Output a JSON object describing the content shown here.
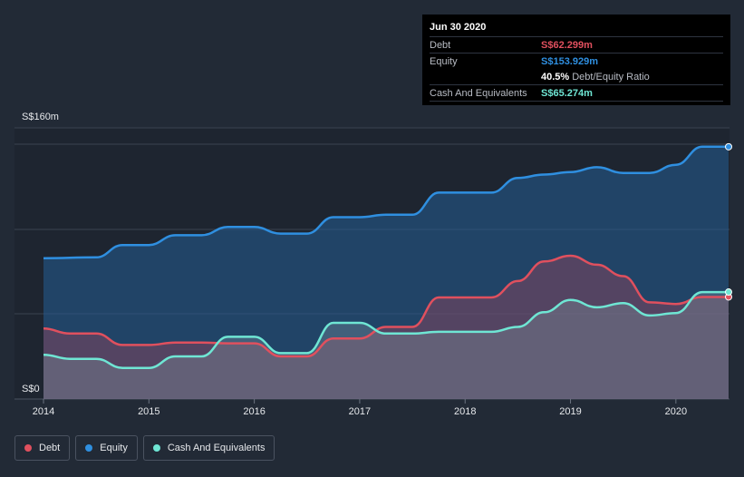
{
  "tooltip": {
    "date": "Jun 30 2020",
    "debt_label": "Debt",
    "debt_value": "S$62.299m",
    "equity_label": "Equity",
    "equity_value": "S$153.929m",
    "ratio_value": "40.5%",
    "ratio_label": "Debt/Equity Ratio",
    "cash_label": "Cash And Equivalents",
    "cash_value": "S$65.274m"
  },
  "legend": {
    "debt": "Debt",
    "equity": "Equity",
    "cash": "Cash And Equivalents"
  },
  "colors": {
    "debt": "#e0505e",
    "equity": "#2f8fe0",
    "cash": "#6fe6d4",
    "background": "#222a36"
  },
  "chart_data": {
    "type": "area",
    "title": "",
    "xlabel": "",
    "ylabel": "",
    "y_tick_labels": [
      "S$160m",
      "S$0"
    ],
    "ylim": [
      0,
      160
    ],
    "xlim": [
      2014,
      2020.5
    ],
    "x_ticks": [
      2014,
      2015,
      2016,
      2017,
      2018,
      2019,
      2020
    ],
    "grid": true,
    "legend_position": "bottom-left",
    "series": [
      {
        "name": "Equity",
        "points": [
          [
            2014.0,
            86
          ],
          [
            2014.5,
            86.5
          ],
          [
            2014.75,
            94
          ],
          [
            2015.0,
            94
          ],
          [
            2015.25,
            100
          ],
          [
            2015.5,
            100
          ],
          [
            2015.75,
            105
          ],
          [
            2016.0,
            105
          ],
          [
            2016.25,
            101
          ],
          [
            2016.5,
            101
          ],
          [
            2016.75,
            111
          ],
          [
            2017.0,
            111
          ],
          [
            2017.25,
            112.5
          ],
          [
            2017.5,
            112.5
          ],
          [
            2017.75,
            126
          ],
          [
            2018.0,
            126
          ],
          [
            2018.25,
            126
          ],
          [
            2018.5,
            135
          ],
          [
            2018.75,
            137
          ],
          [
            2019.0,
            138.5
          ],
          [
            2019.25,
            141.5
          ],
          [
            2019.5,
            138
          ],
          [
            2019.75,
            138
          ],
          [
            2020.0,
            143
          ],
          [
            2020.25,
            154
          ],
          [
            2020.5,
            154
          ]
        ]
      },
      {
        "name": "Debt",
        "points": [
          [
            2014.0,
            43
          ],
          [
            2014.25,
            40
          ],
          [
            2014.5,
            40
          ],
          [
            2014.75,
            33
          ],
          [
            2015.0,
            33
          ],
          [
            2015.25,
            34.5
          ],
          [
            2015.5,
            34.5
          ],
          [
            2015.75,
            34
          ],
          [
            2016.0,
            34
          ],
          [
            2016.25,
            26
          ],
          [
            2016.5,
            26
          ],
          [
            2016.75,
            37
          ],
          [
            2017.0,
            37
          ],
          [
            2017.25,
            44
          ],
          [
            2017.5,
            44
          ],
          [
            2017.75,
            62
          ],
          [
            2018.0,
            62
          ],
          [
            2018.25,
            62
          ],
          [
            2018.5,
            72
          ],
          [
            2018.75,
            84
          ],
          [
            2019.0,
            87.5
          ],
          [
            2019.25,
            82
          ],
          [
            2019.5,
            75
          ],
          [
            2019.75,
            59
          ],
          [
            2020.0,
            58
          ],
          [
            2020.25,
            62.3
          ],
          [
            2020.5,
            62.3
          ]
        ]
      },
      {
        "name": "Cash And Equivalents",
        "points": [
          [
            2014.0,
            27
          ],
          [
            2014.25,
            24.5
          ],
          [
            2014.5,
            24.5
          ],
          [
            2014.75,
            19
          ],
          [
            2015.0,
            19
          ],
          [
            2015.25,
            26
          ],
          [
            2015.5,
            26
          ],
          [
            2015.75,
            38
          ],
          [
            2016.0,
            38
          ],
          [
            2016.25,
            28
          ],
          [
            2016.5,
            28
          ],
          [
            2016.75,
            46.5
          ],
          [
            2017.0,
            46.5
          ],
          [
            2017.25,
            40
          ],
          [
            2017.5,
            40
          ],
          [
            2017.75,
            41
          ],
          [
            2018.0,
            41
          ],
          [
            2018.25,
            41
          ],
          [
            2018.5,
            44
          ],
          [
            2018.75,
            53
          ],
          [
            2019.0,
            60.5
          ],
          [
            2019.25,
            56
          ],
          [
            2019.5,
            58.5
          ],
          [
            2019.75,
            51
          ],
          [
            2020.0,
            52.5
          ],
          [
            2020.25,
            65.3
          ],
          [
            2020.5,
            65.3
          ]
        ]
      }
    ]
  }
}
